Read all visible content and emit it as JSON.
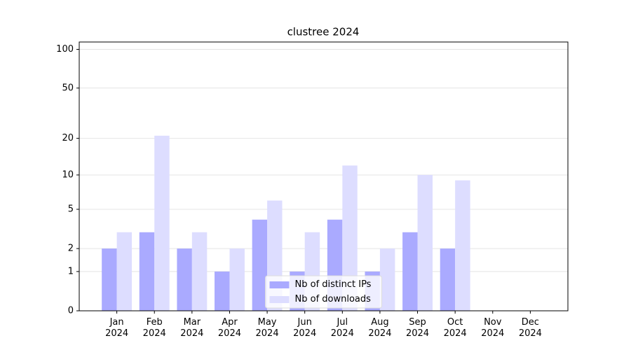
{
  "chart_data": {
    "type": "bar",
    "title": "clustree 2024",
    "categories": [
      "Jan 2024",
      "Feb 2024",
      "Mar 2024",
      "Apr 2024",
      "May 2024",
      "Jun 2024",
      "Jul 2024",
      "Aug 2024",
      "Sep 2024",
      "Oct 2024",
      "Nov 2024",
      "Dec 2024"
    ],
    "series": [
      {
        "name": "Nb of distinct IPs",
        "color": "#aaaaff",
        "values": [
          2,
          3,
          2,
          1,
          4,
          1,
          4,
          1,
          3,
          2,
          0,
          0
        ]
      },
      {
        "name": "Nb of downloads",
        "color": "#ddddff",
        "values": [
          3,
          21,
          3,
          2,
          6,
          3,
          12,
          2,
          10,
          9,
          0,
          0
        ]
      }
    ],
    "yscale": "log1p",
    "ylim": [
      0,
      114
    ],
    "yticks": [
      0,
      1,
      2,
      5,
      10,
      20,
      50,
      100
    ],
    "grid": true,
    "legend": "lower center"
  }
}
